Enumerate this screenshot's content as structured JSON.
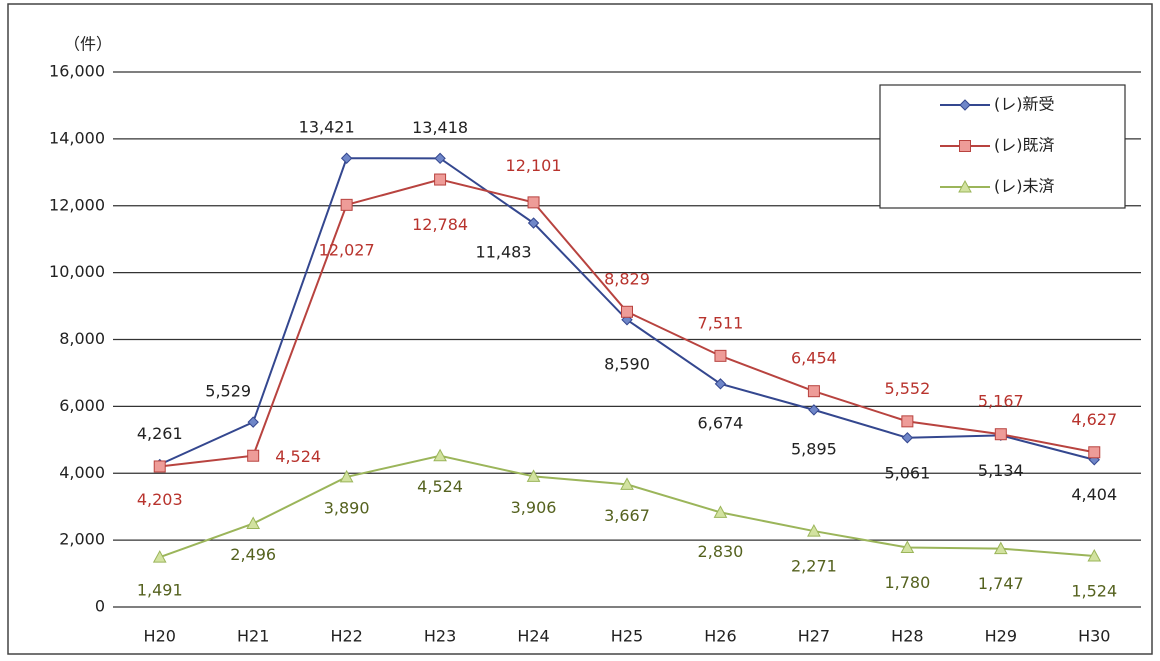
{
  "chart_data": {
    "type": "line",
    "y_label": "（件）",
    "categories": [
      "H20",
      "H21",
      "H22",
      "H23",
      "H24",
      "H25",
      "H26",
      "H27",
      "H28",
      "H29",
      "H30"
    ],
    "series": [
      {
        "name": "(レ)新受",
        "color": "#34478f",
        "marker": "diamond",
        "label_color": "#222222",
        "values": [
          4261,
          5529,
          13421,
          13418,
          11483,
          8590,
          6674,
          5895,
          5061,
          5134,
          4404
        ],
        "value_labels": [
          "4,261",
          "5,529",
          "13,421",
          "13,418",
          "11,483",
          "8,590",
          "6,674",
          "5,895",
          "5,061",
          "5,134",
          "4,404"
        ]
      },
      {
        "name": "(レ)既済",
        "color": "#b8433f",
        "marker": "square",
        "label_color": "#b8332d",
        "values": [
          4203,
          4524,
          12027,
          12784,
          12101,
          8829,
          7511,
          6454,
          5552,
          5167,
          4627
        ],
        "value_labels": [
          "4,203",
          "4,524",
          "12,027",
          "12,784",
          "12,101",
          "8,829",
          "7,511",
          "6,454",
          "5,552",
          "5,167",
          "4,627"
        ]
      },
      {
        "name": "(レ)未済",
        "color": "#9bb55a",
        "marker": "triangle",
        "label_color": "#55621f",
        "values": [
          1491,
          2496,
          3890,
          4524,
          3906,
          3667,
          2830,
          2271,
          1780,
          1747,
          1524
        ],
        "value_labels": [
          "1,491",
          "2,496",
          "3,890",
          "4,524",
          "3,906",
          "3,667",
          "2,830",
          "2,271",
          "1,780",
          "1,747",
          "1,524"
        ]
      }
    ],
    "ylim": [
      0,
      16000
    ],
    "yticks": [
      0,
      {
        "value": 2000,
        "label": "2,000"
      },
      {
        "value": 4000,
        "label": "4,000"
      },
      {
        "value": 6000,
        "label": "6,000"
      },
      {
        "value": 8000,
        "label": "8,000"
      },
      {
        "value": 10000,
        "label": "10,000"
      },
      {
        "value": 12000,
        "label": "12,000"
      },
      {
        "value": 14000,
        "label": "14,000"
      },
      {
        "value": 16000,
        "label": "16,000"
      }
    ],
    "grid": true,
    "legend": "upper right"
  }
}
